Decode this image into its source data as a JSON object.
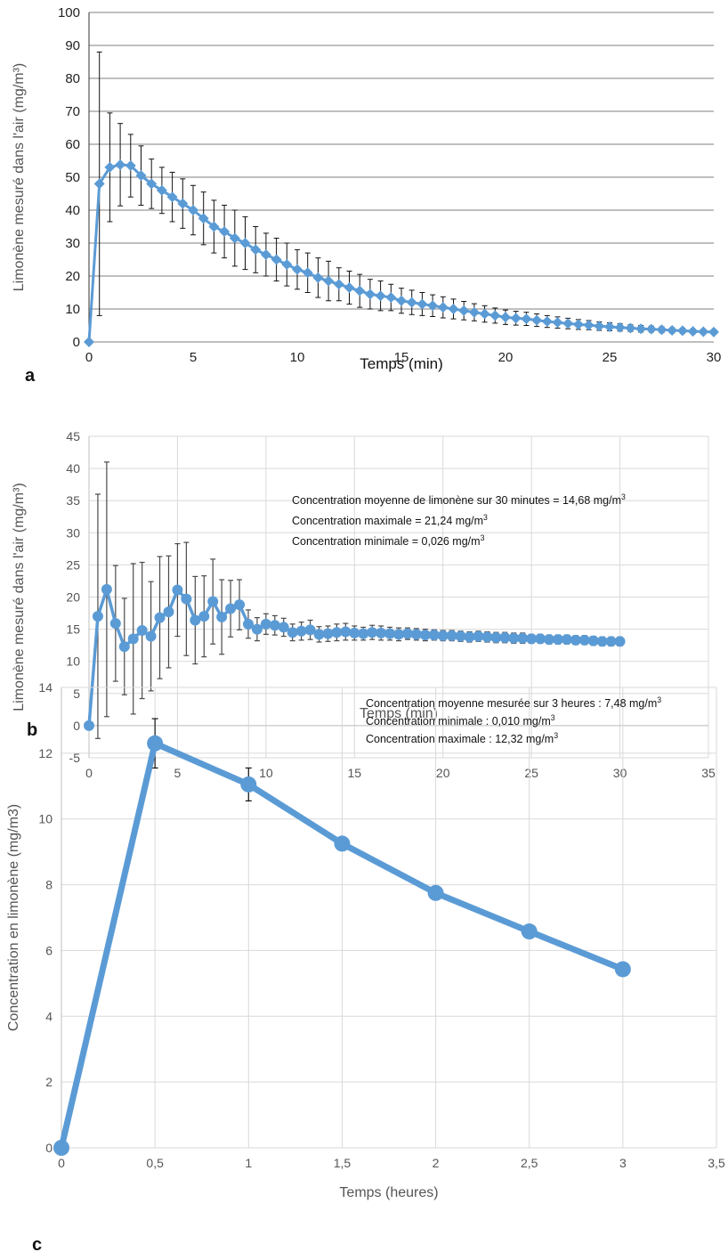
{
  "chart_data": [
    {
      "id": "a",
      "type": "line",
      "panel_letter": "a",
      "xlabel": "Temps (min)",
      "ylabel": "Limonène mesuré dans l'air (mg/m³)",
      "xlim": [
        0,
        30
      ],
      "ylim": [
        0,
        100
      ],
      "xticks": [
        0,
        5,
        10,
        15,
        20,
        25,
        30
      ],
      "yticks": [
        0,
        10,
        20,
        30,
        40,
        50,
        60,
        70,
        80,
        90,
        100
      ],
      "grid": "horizontal",
      "marker": "diamond",
      "color": "#5b9bd5",
      "series": [
        {
          "x": [
            0,
            0.5,
            1,
            1.5,
            2,
            2.5,
            3,
            3.5,
            4,
            4.5,
            5,
            5.5,
            6,
            6.5,
            7,
            7.5,
            8,
            8.5,
            9,
            9.5,
            10,
            10.5,
            11,
            11.5,
            12,
            12.5,
            13,
            13.5,
            14,
            14.5,
            15,
            15.5,
            16,
            16.5,
            17,
            17.5,
            18,
            18.5,
            19,
            19.5,
            20,
            20.5,
            21,
            21.5,
            22,
            22.5,
            23,
            23.5,
            24,
            24.5,
            25,
            25.5,
            26,
            26.5,
            27,
            27.5,
            28,
            28.5,
            29,
            29.5,
            30
          ],
          "y": [
            0,
            48,
            53,
            53.8,
            53.5,
            50.5,
            48,
            46,
            44,
            42,
            40,
            37.5,
            35,
            33.5,
            31.5,
            30,
            28,
            26.5,
            25,
            23.5,
            22,
            21,
            19.5,
            18.5,
            17.5,
            16.5,
            15.5,
            14.5,
            14,
            13.5,
            12.5,
            12,
            11.5,
            11,
            10.5,
            10,
            9.5,
            9,
            8.5,
            8,
            7.5,
            7.2,
            7,
            6.6,
            6.2,
            5.9,
            5.6,
            5.3,
            5.1,
            4.8,
            4.6,
            4.4,
            4.2,
            4,
            3.9,
            3.7,
            3.5,
            3.4,
            3.2,
            3.1,
            3
          ],
          "error": [
            0,
            40,
            16.5,
            12.5,
            9.5,
            9,
            7.5,
            7,
            7.5,
            7.5,
            7.5,
            8,
            8,
            8,
            8.5,
            8,
            7,
            6.5,
            6.5,
            6.5,
            6,
            6,
            6,
            6,
            5,
            5,
            5,
            4.5,
            4.5,
            4,
            3.8,
            3.7,
            3.5,
            3.3,
            3.2,
            3,
            2.8,
            2.6,
            2.5,
            2.3,
            2.2,
            2.1,
            2,
            1.9,
            1.8,
            1.7,
            1.6,
            1.5,
            1.4,
            1.3,
            1.2,
            1.1,
            1,
            1,
            0.9,
            0.9,
            0.8,
            0.8,
            0.7,
            0.7,
            0.6
          ]
        }
      ]
    },
    {
      "id": "b",
      "type": "line",
      "panel_letter": "b",
      "xlabel": "Temps (min)",
      "ylabel": "Limonène mesuré dans l'air (mg/m³)",
      "xlim": [
        0,
        35
      ],
      "ylim": [
        -5,
        45
      ],
      "xticks": [
        0,
        5,
        10,
        15,
        20,
        25,
        30,
        35
      ],
      "yticks": [
        -5,
        0,
        5,
        10,
        15,
        20,
        25,
        30,
        35,
        40,
        45
      ],
      "grid": "both",
      "marker": "circle",
      "color": "#5b9bd5",
      "annotations": [
        {
          "text": "Concentration moyenne de limonène sur 30 minutes = 14,68 mg/m",
          "sup": "3"
        },
        {
          "text": "Concentration maximale = 21,24 mg/m",
          "sup": "3"
        },
        {
          "text": "Concentration minimale = 0,026 mg/m",
          "sup": "3"
        }
      ],
      "series": [
        {
          "x": [
            0,
            0.5,
            1,
            1.5,
            2,
            2.5,
            3,
            3.5,
            4,
            4.5,
            5,
            5.5,
            6,
            6.5,
            7,
            7.5,
            8,
            8.5,
            9,
            9.5,
            10,
            10.5,
            11,
            11.5,
            12,
            12.5,
            13,
            13.5,
            14,
            14.5,
            15,
            15.5,
            16,
            16.5,
            17,
            17.5,
            18,
            18.5,
            19,
            19.5,
            20,
            20.5,
            21,
            21.5,
            22,
            22.5,
            23,
            23.5,
            24,
            24.5,
            25,
            25.5,
            26,
            26.5,
            27,
            27.5,
            28,
            28.5,
            29,
            29.5,
            30
          ],
          "y": [
            0,
            17,
            21.2,
            15.9,
            12.3,
            13.5,
            14.8,
            13.9,
            16.8,
            17.7,
            21.1,
            19.7,
            16.4,
            17,
            19.3,
            16.9,
            18.2,
            18.8,
            15.8,
            15,
            15.8,
            15.6,
            15.3,
            14.5,
            14.7,
            14.9,
            14.2,
            14.3,
            14.5,
            14.6,
            14.4,
            14.3,
            14.5,
            14.4,
            14.3,
            14.2,
            14.3,
            14.2,
            14.1,
            14.1,
            14,
            14,
            13.9,
            13.8,
            13.9,
            13.8,
            13.7,
            13.7,
            13.6,
            13.6,
            13.5,
            13.5,
            13.4,
            13.4,
            13.4,
            13.3,
            13.3,
            13.2,
            13.1,
            13.1,
            13.1
          ],
          "error": [
            0,
            19,
            19.8,
            9,
            7.5,
            11.7,
            10.6,
            8.5,
            9.5,
            8.7,
            7.2,
            8.8,
            6.8,
            6.3,
            6.6,
            5.8,
            4.4,
            3.9,
            2.2,
            1.8,
            1.6,
            1.5,
            1.4,
            1.3,
            1.4,
            1.5,
            1.2,
            1.2,
            1.3,
            1.3,
            1.1,
            1,
            1.1,
            1.1,
            1,
            1,
            0.9,
            0.9,
            0.9,
            0.8,
            0.8,
            0.8,
            0.8,
            0.8,
            0.8,
            0.8,
            0.8,
            0.8,
            0.8,
            0.8,
            0.7,
            0.7,
            0.7,
            0.7,
            0.7,
            0.7,
            0.7,
            0.7,
            0.7,
            0.7,
            0.7
          ]
        }
      ]
    },
    {
      "id": "c",
      "type": "line",
      "panel_letter": "c",
      "xlabel": "Temps (heures)",
      "ylabel": "Concentration en limonène (mg/m3)",
      "xlim": [
        0,
        3.5
      ],
      "ylim": [
        0,
        14
      ],
      "xticks": [
        0,
        0.5,
        1,
        1.5,
        2,
        2.5,
        3,
        3.5
      ],
      "xticklabels": [
        "0",
        "0,5",
        "1",
        "1,5",
        "2",
        "2,5",
        "3",
        "3,5"
      ],
      "yticks": [
        0,
        2,
        4,
        6,
        8,
        10,
        12,
        14
      ],
      "grid": "both",
      "marker": "circle",
      "color": "#5b9bd5",
      "annotations": [
        {
          "text": "Concentration moyenne mesurée sur 3 heures : 7,48 mg/m",
          "sup": "3"
        },
        {
          "text": "Concentration minimale : 0,010 mg/m",
          "sup": "3"
        },
        {
          "text": "Concentration maximale : 12,32 mg/m",
          "sup": "3"
        }
      ],
      "series": [
        {
          "x": [
            0,
            0.5,
            1,
            1.5,
            2,
            2.5,
            3
          ],
          "y": [
            0,
            12.3,
            11.05,
            9.25,
            7.75,
            6.58,
            5.43
          ],
          "error": [
            0,
            0.75,
            0.5,
            0,
            0,
            0,
            0
          ]
        }
      ]
    }
  ]
}
